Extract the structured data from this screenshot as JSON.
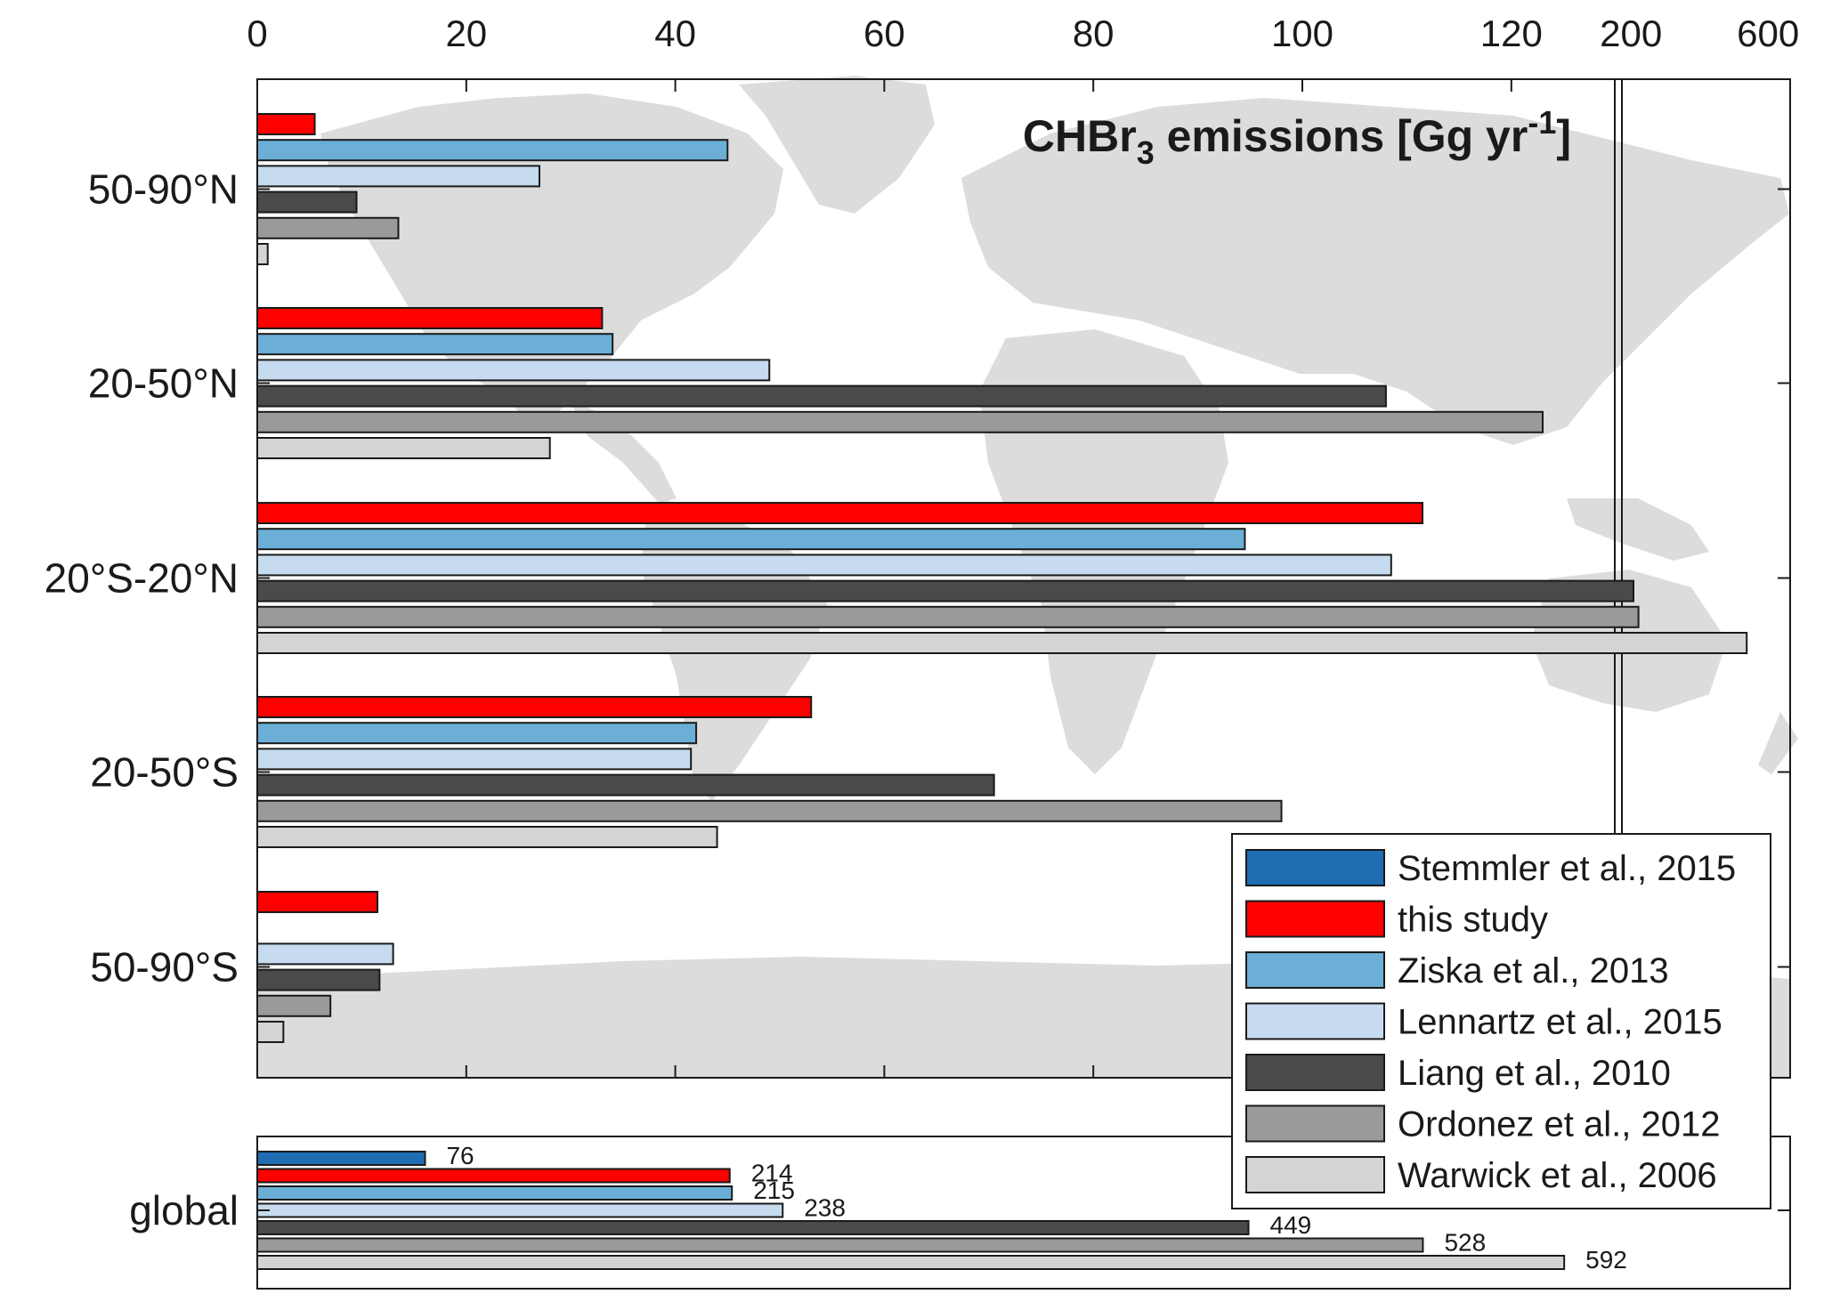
{
  "chart_data": [
    {
      "type": "bar",
      "orientation": "horizontal",
      "title": "CHBr",
      "title_subscript": "3",
      "title_rest": " emissions [Gg yr",
      "title_superscript": "-1",
      "title_close": "]",
      "x_ticks_main": [
        "0",
        "20",
        "40",
        "60",
        "80",
        "100",
        "120"
      ],
      "x_ticks_extra": [
        "200",
        "600"
      ],
      "xlim_main": [
        0,
        130
      ],
      "x_break_scale": "linear 0–130, then compressed 130–600",
      "categories": [
        "50-90°N",
        "20-50°N",
        "20°S-20°N",
        "20-50°S",
        "50-90°S"
      ],
      "series": [
        {
          "name": "this study",
          "values": [
            5.5,
            33,
            111.5,
            53,
            11.5
          ]
        },
        {
          "name": "Ziska et al., 2013",
          "values": [
            45,
            34,
            94.5,
            42,
            null
          ]
        },
        {
          "name": "Lennartz et al., 2015",
          "values": [
            27,
            49,
            108.5,
            41.5,
            13
          ]
        },
        {
          "name": "Liang et al., 2010",
          "values": [
            9.5,
            108,
            222,
            70.5,
            11.7
          ]
        },
        {
          "name": "Ordonez et al., 2012",
          "values": [
            13.5,
            123,
            236,
            98,
            7
          ]
        },
        {
          "name": "Warwick et al., 2006",
          "values": [
            1,
            28,
            540,
            44,
            2.5
          ]
        }
      ],
      "background": "world map (grey landmasses)",
      "legend_position": "bottom-right"
    },
    {
      "type": "bar",
      "orientation": "horizontal",
      "categories": [
        "global"
      ],
      "series": [
        {
          "name": "Stemmler et al., 2015",
          "values": [
            76
          ]
        },
        {
          "name": "this study",
          "values": [
            214
          ]
        },
        {
          "name": "Ziska et al., 2013",
          "values": [
            215
          ]
        },
        {
          "name": "Lennartz et al., 2015",
          "values": [
            238
          ]
        },
        {
          "name": "Liang et al., 2010",
          "values": [
            449
          ]
        },
        {
          "name": "Ordonez et al., 2012",
          "values": [
            528
          ]
        },
        {
          "name": "Warwick et al., 2006",
          "values": [
            592
          ]
        }
      ],
      "value_labels": [
        "76",
        "214",
        "215",
        "238",
        "449",
        "528",
        "592"
      ]
    }
  ],
  "legend": [
    {
      "label": "Stemmler et al., 2015",
      "color": "#1f6eb4"
    },
    {
      "label": "this study",
      "color": "#ff0000"
    },
    {
      "label": "Ziska et al., 2013",
      "color": "#6baed6"
    },
    {
      "label": "Lennartz et al., 2015",
      "color": "#c6dbef"
    },
    {
      "label": "Liang et al., 2010",
      "color": "#4a4a4a"
    },
    {
      "label": "Ordonez et al., 2012",
      "color": "#9a9a9a"
    },
    {
      "label": "Warwick et al., 2006",
      "color": "#d4d4d4"
    }
  ]
}
